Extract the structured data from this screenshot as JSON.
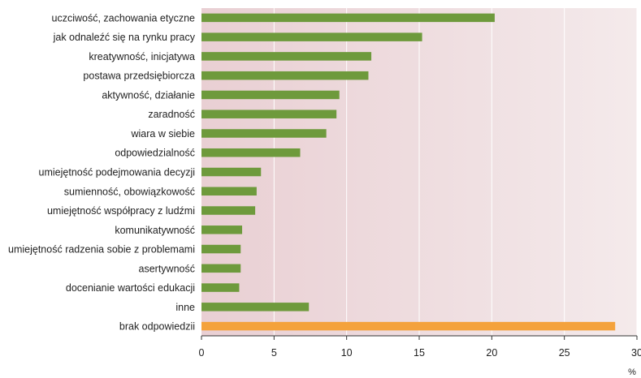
{
  "chart_data": {
    "type": "bar",
    "orientation": "horizontal",
    "categories": [
      "uczciwość, zachowania etyczne",
      "jak odnaleźć się na rynku pracy",
      "kreatywność, inicjatywa",
      "postawa przedsiębiorcza",
      "aktywność, działanie",
      "zaradność",
      "wiara w siebie",
      "odpowiedzialność",
      "umiejętność podejmowania decyzji",
      "sumienność, obowiązkowość",
      "umiejętność współpracy z ludźmi",
      "komunikatywność",
      "umiejętność radzenia sobie z problemami",
      "asertywność",
      "docenianie wartości edukacji",
      "inne",
      "brak odpowiedzii"
    ],
    "values": [
      20.2,
      15.2,
      11.7,
      11.5,
      9.5,
      9.3,
      8.6,
      6.8,
      4.1,
      3.8,
      3.7,
      2.8,
      2.7,
      2.7,
      2.6,
      7.4,
      28.5
    ],
    "bar_colors": [
      "#6e9a3c",
      "#6e9a3c",
      "#6e9a3c",
      "#6e9a3c",
      "#6e9a3c",
      "#6e9a3c",
      "#6e9a3c",
      "#6e9a3c",
      "#6e9a3c",
      "#6e9a3c",
      "#6e9a3c",
      "#6e9a3c",
      "#6e9a3c",
      "#6e9a3c",
      "#6e9a3c",
      "#6e9a3c",
      "#f4a23c"
    ],
    "xlim": [
      0,
      30
    ],
    "xticks": [
      "0",
      "5",
      "10",
      "15",
      "20",
      "25",
      "30"
    ],
    "xunit": "%",
    "grid": "vertical",
    "background_gradient": [
      "#e9cfd3",
      "#f4eaeb"
    ],
    "grid_color": "#ffffff"
  }
}
